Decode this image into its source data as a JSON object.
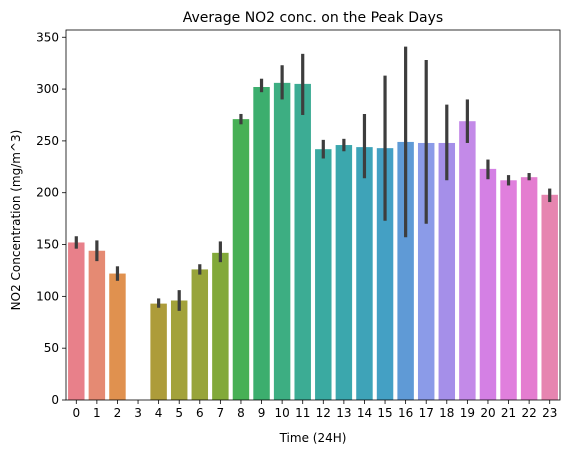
{
  "chart_data": {
    "type": "bar",
    "title": "Average NO2 conc. on the Peak Days",
    "xlabel": "Time (24H)",
    "ylabel": "NO2 Concentration (mg/m^3)",
    "categories": [
      "0",
      "1",
      "2",
      "3",
      "4",
      "5",
      "6",
      "7",
      "8",
      "9",
      "10",
      "11",
      "12",
      "13",
      "14",
      "15",
      "16",
      "17",
      "18",
      "19",
      "20",
      "21",
      "22",
      "23"
    ],
    "values": [
      152,
      144,
      122,
      null,
      93,
      96,
      126,
      142,
      271,
      302,
      306,
      305,
      242,
      246,
      244,
      243,
      249,
      248,
      248,
      269,
      223,
      212,
      215,
      198
    ],
    "error_low": [
      146,
      134,
      115,
      null,
      89,
      86,
      121,
      133,
      266,
      297,
      290,
      275,
      233,
      240,
      214,
      173,
      157,
      170,
      212,
      248,
      213,
      207,
      212,
      191
    ],
    "error_high": [
      158,
      154,
      129,
      null,
      98,
      106,
      131,
      153,
      276,
      310,
      323,
      334,
      251,
      252,
      276,
      313,
      341,
      328,
      285,
      290,
      232,
      217,
      219,
      204
    ],
    "ylim": [
      0,
      357
    ],
    "yticks": [
      0,
      50,
      100,
      150,
      200,
      250,
      300,
      350
    ],
    "grid": false,
    "colors": [
      "#e8808a",
      "#e58a73",
      "#e0914f",
      "#c49a40",
      "#ad9c3a",
      "#a3a23a",
      "#98a43a",
      "#82a93a",
      "#47b055",
      "#3cae6e",
      "#3dae82",
      "#3cac94",
      "#3aaaa1",
      "#3ba7ad",
      "#3ea3b8",
      "#44a0c4",
      "#5f9ad6",
      "#8b9be8",
      "#a58fe9",
      "#c38ae8",
      "#d480e4",
      "#e07fdd",
      "#e47dd0",
      "#e685b0"
    ]
  }
}
